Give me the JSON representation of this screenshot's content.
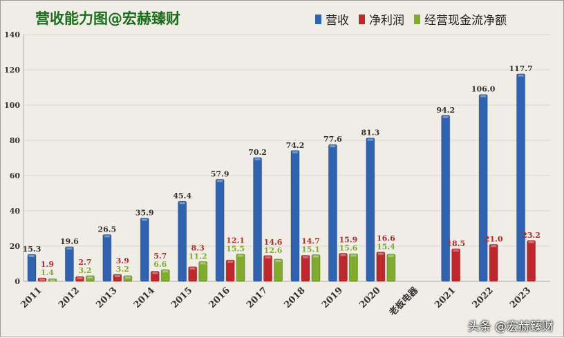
{
  "chart_data": {
    "type": "bar",
    "title": "营收能力图@宏赫臻财",
    "categories": [
      "2011",
      "2012",
      "2013",
      "2014",
      "2015",
      "2016",
      "2017",
      "2018",
      "2019",
      "2020",
      "老板电器",
      "2021",
      "2022",
      "2023"
    ],
    "series": [
      {
        "name": "营收",
        "color": "#2f62b0",
        "values": [
          15.3,
          19.6,
          26.5,
          35.9,
          45.4,
          57.9,
          70.2,
          74.2,
          77.6,
          81.3,
          null,
          94.2,
          106.0,
          117.7
        ]
      },
      {
        "name": "净利润",
        "color": "#c0272d",
        "values": [
          1.9,
          2.7,
          3.9,
          5.7,
          8.3,
          12.1,
          14.6,
          14.7,
          15.9,
          16.6,
          null,
          18.5,
          21.0,
          23.2
        ]
      },
      {
        "name": "经营现金流净额",
        "color": "#7fac2a",
        "values": [
          1.4,
          3.2,
          3.2,
          6.6,
          11.2,
          15.5,
          12.6,
          15.1,
          15.6,
          15.4,
          null,
          null,
          null,
          null
        ]
      }
    ],
    "ylim": [
      0,
      140
    ],
    "yticks": [
      0,
      20,
      40,
      60,
      80,
      100,
      120,
      140
    ],
    "grid": true,
    "legend": "top-right"
  },
  "watermark": "头条 @宏赫臻财"
}
